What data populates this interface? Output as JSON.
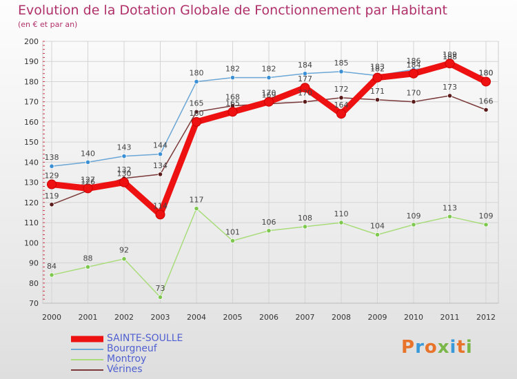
{
  "title": "Evolution de la Dotation Globale de Fonctionnement par Habitant",
  "subtitle": "(en € et par an)",
  "logo": {
    "text": "Proxiti",
    "colors": [
      "#e8732a",
      "#3a9ad9",
      "#e8732a",
      "#7ab648",
      "#3a9ad9",
      "#e8732a",
      "#7ab648"
    ]
  },
  "chart_data": {
    "type": "line",
    "title": "Evolution de la Dotation Globale de Fonctionnement par Habitant",
    "ylabel": "(en € et par an)",
    "xlabel": "",
    "ylim": [
      70,
      200
    ],
    "yticks": [
      70,
      80,
      90,
      100,
      110,
      120,
      130,
      140,
      150,
      160,
      170,
      180,
      190,
      200
    ],
    "categories": [
      "2000",
      "2001",
      "2002",
      "2003",
      "2004",
      "2005",
      "2006",
      "2007",
      "2008",
      "2009",
      "2010",
      "2011",
      "2012"
    ],
    "grid": true,
    "legend_position": "bottom-left",
    "series": [
      {
        "name": "SAINTE-SOULLE",
        "color": "#ee1111",
        "dot": "#dd0000",
        "values": [
          129,
          127,
          130,
          114,
          160,
          165,
          170,
          177,
          164,
          182,
          184,
          189,
          180
        ]
      },
      {
        "name": "Bourgneuf",
        "color": "#6aa6d6",
        "dot": "#3b8fd4",
        "values": [
          138,
          140,
          143,
          144,
          180,
          182,
          182,
          184,
          185,
          183,
          186,
          188,
          180
        ]
      },
      {
        "name": "Montroy",
        "color": "#a8dc7a",
        "dot": "#7ec850",
        "values": [
          84,
          88,
          92,
          73,
          117,
          101,
          106,
          108,
          110,
          104,
          109,
          113,
          109
        ]
      },
      {
        "name": "Vérines",
        "color": "#7a3838",
        "dot": "#5a1a1a",
        "values": [
          119,
          126,
          132,
          134,
          165,
          168,
          169,
          170,
          172,
          171,
          170,
          173,
          166
        ]
      }
    ]
  }
}
